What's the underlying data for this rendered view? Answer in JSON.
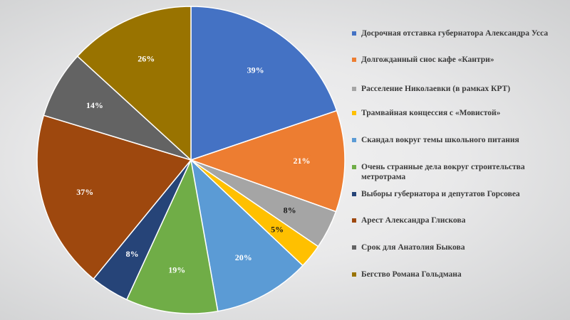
{
  "chart_data": {
    "type": "pie",
    "title": "",
    "series": [
      {
        "labels": [
          "Досрочная отставка губернатора Александра Усса",
          "Долгожданный снос кафе «Кантри»",
          "Расселение Николаевки (в рамках КРТ)",
          "Трамвайная концессия с «Мовистой»",
          "Скандал вокруг темы школьного питания",
          "Очень странные дела вокруг строительства метротрама",
          "Выборы губернатора и депутатов Горсовеа",
          "Арест Александра Глискова",
          "Срок для Анатолия Быкова",
          "Бегство Романа Гольдмана"
        ],
        "values": [
          39,
          21,
          8,
          5,
          20,
          19,
          8,
          37,
          14,
          26
        ],
        "value_labels": [
          "39%",
          "21%",
          "8%",
          "5%",
          "20%",
          "19%",
          "8%",
          "37%",
          "14%",
          "26%"
        ],
        "colors": [
          "#4472c4",
          "#ed7d31",
          "#a5a5a5",
          "#ffc000",
          "#5b9bd5",
          "#70ad47",
          "#264478",
          "#9e480e",
          "#636363",
          "#997300"
        ]
      }
    ],
    "legend_position": "right"
  }
}
